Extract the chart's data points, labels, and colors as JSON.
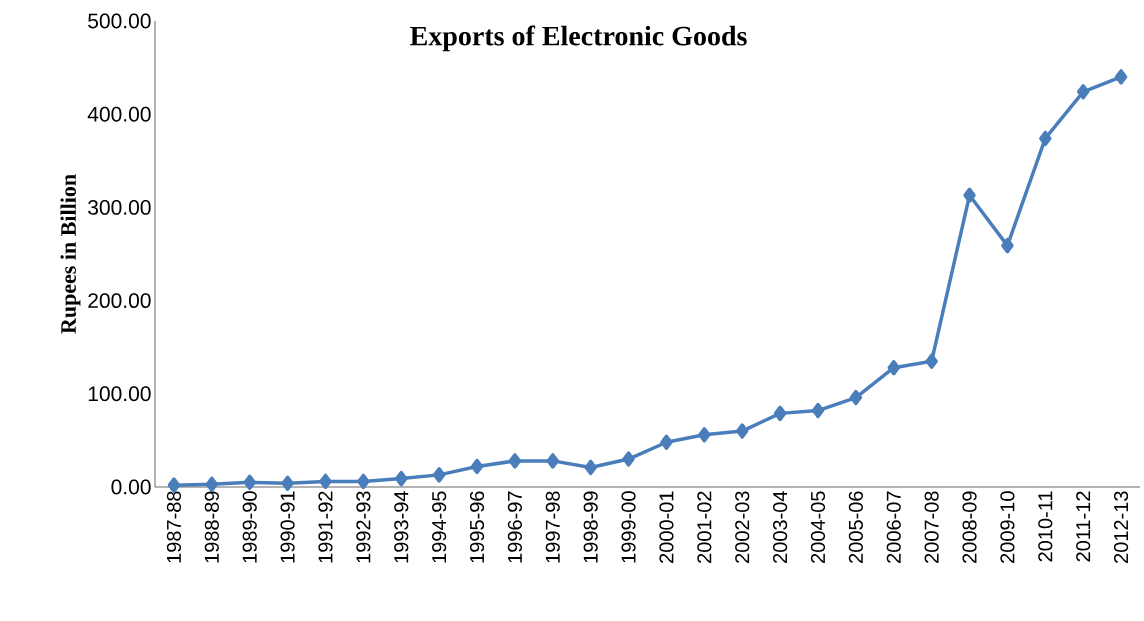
{
  "chart_data": {
    "type": "line",
    "title": "Exports of  Electronic Goods",
    "ylabel": "Rupees in Billion",
    "categories": [
      "1987-88",
      "1988-89",
      "1989-90",
      "1990-91",
      "1991-92",
      "1992-93",
      "1993-94",
      "1994-95",
      "1995-96",
      "1996-97",
      "1997-98",
      "1998-99",
      "1999-00",
      "2000-01",
      "2001-02",
      "2002-03",
      "2003-04",
      "2004-05",
      "2005-06",
      "2006-07",
      "2007-08",
      "2008-09",
      "2009-10",
      "2010-11",
      "2011-12",
      "2012-13"
    ],
    "values": [
      2,
      3,
      5,
      4,
      6,
      6,
      9,
      13,
      22,
      28,
      28,
      21,
      30,
      48,
      56,
      60,
      79,
      82,
      96,
      128,
      135,
      313,
      259,
      374,
      424,
      440
    ],
    "color": "#4a7ebb",
    "marker": "diamond",
    "line_style": "solid",
    "ylim": [
      0,
      500
    ],
    "yticks": [
      {
        "value": 0,
        "label": "0.00"
      },
      {
        "value": 100,
        "label": "100.00"
      },
      {
        "value": 200,
        "label": "200.00"
      },
      {
        "value": 300,
        "label": "300.00"
      },
      {
        "value": 400,
        "label": "400.00"
      },
      {
        "value": 500,
        "label": "500.00"
      }
    ],
    "grid": false
  }
}
